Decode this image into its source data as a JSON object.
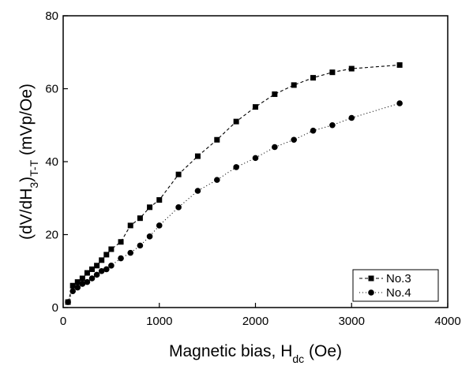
{
  "chart_data": {
    "type": "line",
    "xlabel": [
      {
        "text": "Magnetic bias, H"
      },
      {
        "text": "dc",
        "sub": true
      },
      {
        "text": " (Oe)"
      }
    ],
    "ylabel": [
      {
        "text": "(dV/dH"
      },
      {
        "text": "3",
        "sub": true
      },
      {
        "text": ")"
      },
      {
        "text": "T-T",
        "sub": true
      },
      {
        "text": " (mVp/Oe)"
      }
    ],
    "x": [
      50,
      100,
      150,
      200,
      250,
      300,
      350,
      400,
      450,
      500,
      600,
      700,
      800,
      900,
      1000,
      1200,
      1400,
      1600,
      1800,
      2000,
      2200,
      2400,
      2600,
      2800,
      3000,
      3500
    ],
    "series": [
      {
        "name": "No.3",
        "color": "#000000",
        "marker": "square",
        "dash": "4,3",
        "values": [
          1.5,
          6,
          7,
          8,
          9.5,
          10.5,
          11.5,
          13,
          14.5,
          16,
          18,
          22.5,
          24.5,
          27.5,
          29.5,
          36.5,
          41.5,
          46,
          51,
          55,
          58.5,
          61,
          63,
          64.5,
          65.5,
          66.5
        ]
      },
      {
        "name": "No.4",
        "color": "#000000",
        "marker": "circle",
        "dash": "1,3",
        "values": [
          1.5,
          4.5,
          5.5,
          6.5,
          7,
          8,
          9,
          10,
          10.5,
          11.5,
          13.5,
          15,
          17,
          19.5,
          22.5,
          27.5,
          32,
          35,
          38.5,
          41,
          44,
          46,
          48.5,
          50,
          52,
          56
        ]
      }
    ],
    "xlim": [
      0,
      4000
    ],
    "xticks": [
      0,
      1000,
      2000,
      3000,
      4000
    ],
    "ylim": [
      0,
      80
    ],
    "yticks": [
      0,
      20,
      40,
      60,
      80
    ],
    "grid": false,
    "legend": "lower right"
  }
}
